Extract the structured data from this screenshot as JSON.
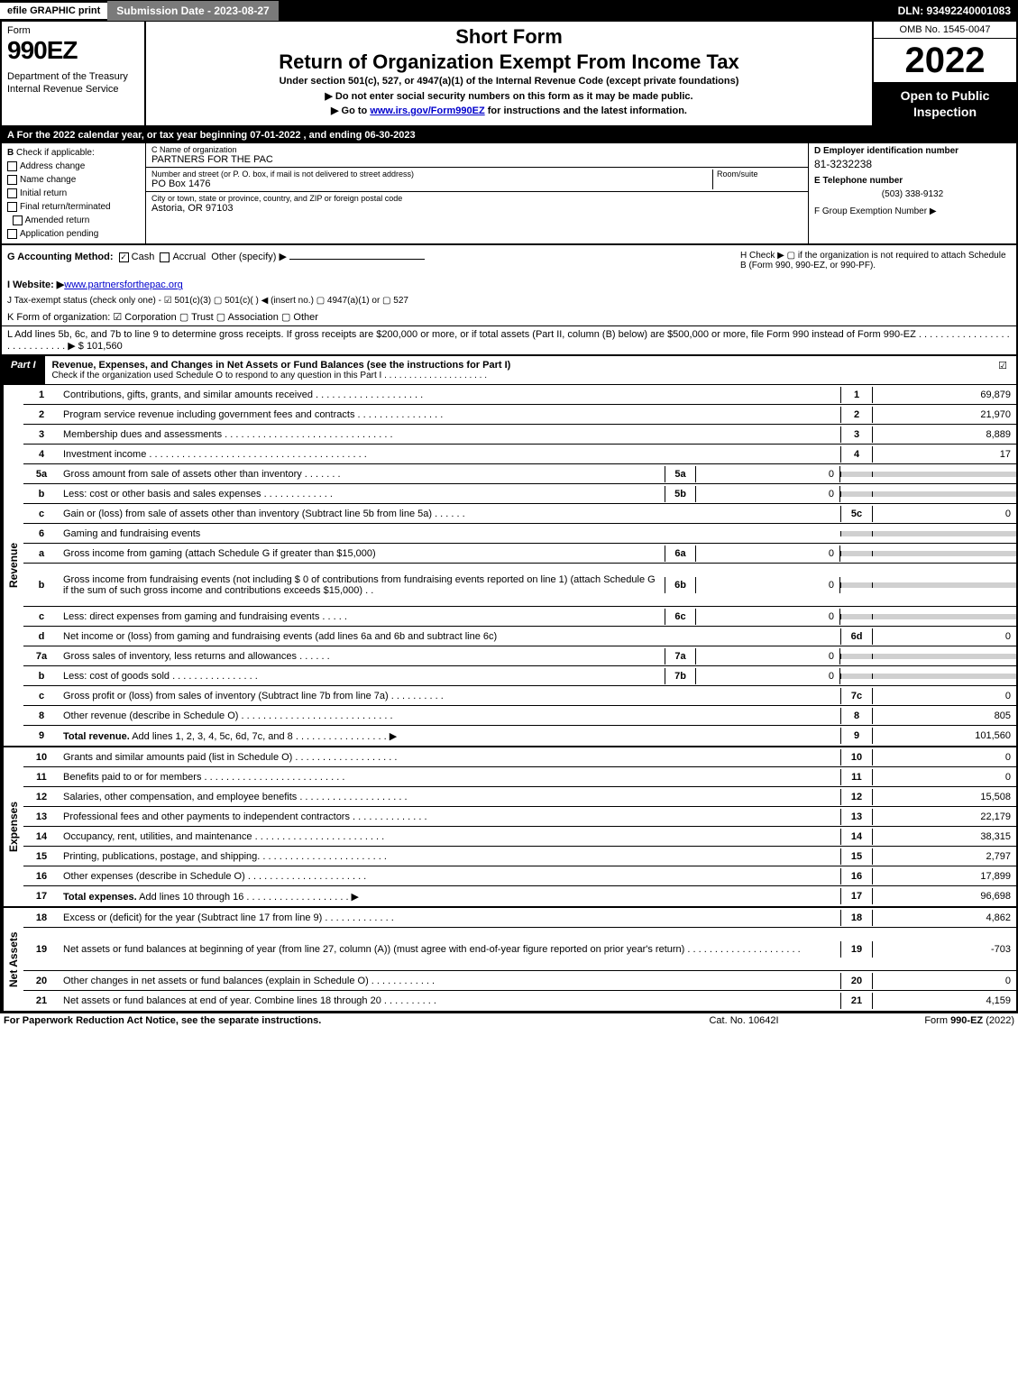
{
  "topbar": {
    "efile": "efile GRAPHIC print",
    "subdate": "Submission Date - 2023-08-27",
    "dln": "DLN: 93492240001083"
  },
  "header": {
    "form_word": "Form",
    "form_num": "990EZ",
    "dept": "Department of the Treasury\nInternal Revenue Service",
    "short_form": "Short Form",
    "title": "Return of Organization Exempt From Income Tax",
    "under": "Under section 501(c), 527, or 4947(a)(1) of the Internal Revenue Code (except private foundations)",
    "arrow1": "▶ Do not enter social security numbers on this form as it may be made public.",
    "arrow2_pre": "▶ Go to ",
    "arrow2_link": "www.irs.gov/Form990EZ",
    "arrow2_post": " for instructions and the latest information.",
    "omb": "OMB No. 1545-0047",
    "year": "2022",
    "open": "Open to Public Inspection"
  },
  "lineA": "A  For the 2022 calendar year, or tax year beginning 07-01-2022 , and ending 06-30-2023",
  "sectionB": {
    "label": "B",
    "check_if": "Check if applicable:",
    "items": [
      "Address change",
      "Name change",
      "Initial return",
      "Final return/terminated",
      "Amended return",
      "Application pending"
    ]
  },
  "sectionC": {
    "name_lbl": "C Name of organization",
    "name": "PARTNERS FOR THE PAC",
    "street_lbl": "Number and street (or P. O. box, if mail is not delivered to street address)",
    "room_lbl": "Room/suite",
    "street": "PO Box 1476",
    "city_lbl": "City or town, state or province, country, and ZIP or foreign postal code",
    "city": "Astoria, OR  97103"
  },
  "sectionD": {
    "ein_lbl": "D Employer identification number",
    "ein": "81-3232238",
    "tel_lbl": "E Telephone number",
    "tel": "(503) 338-9132",
    "grp_lbl": "F Group Exemption Number   ▶"
  },
  "lineG": {
    "label": "G Accounting Method:",
    "cash": "Cash",
    "accrual": "Accrual",
    "other": "Other (specify) ▶"
  },
  "lineH": "H  Check ▶   ▢  if the organization is not required to attach Schedule B (Form 990, 990-EZ, or 990-PF).",
  "lineI": {
    "label": "I Website: ▶",
    "val": "www.partnersforthepac.org"
  },
  "lineJ": "J Tax-exempt status (check only one) - ☑ 501(c)(3)  ▢ 501(c)(  ) ◀ (insert no.)  ▢ 4947(a)(1) or  ▢ 527",
  "lineK": "K Form of organization:   ☑ Corporation   ▢ Trust   ▢ Association   ▢ Other",
  "lineL": {
    "text": "L Add lines 5b, 6c, and 7b to line 9 to determine gross receipts. If gross receipts are $200,000 or more, or if total assets (Part II, column (B) below) are $500,000 or more, file Form 990 instead of Form 990-EZ  .  .  .  .  .  .  .  .  .  .  .  .  .  .  .  .  .  .  .  .  .  .  .  .  .  .  .  .  ▶ $",
    "val": "101,560"
  },
  "part1": {
    "label": "Part I",
    "title": "Revenue, Expenses, and Changes in Net Assets or Fund Balances (see the instructions for Part I)",
    "sub": "Check if the organization used Schedule O to respond to any question in this Part I  .  .  .  .  .  .  .  .  .  .  .  .  .  .  .  .  .  .  .  .  .",
    "check": "☑"
  },
  "sections": {
    "revenue": "Revenue",
    "expenses": "Expenses",
    "netassets": "Net Assets"
  },
  "rows": [
    {
      "ln": "1",
      "desc": "Contributions, gifts, grants, and similar amounts received  .  .  .  .  .  .  .  .  .  .  .  .  .  .  .  .  .  .  .  .",
      "n": "1",
      "v": "69,879"
    },
    {
      "ln": "2",
      "desc": "Program service revenue including government fees and contracts  .  .  .  .  .  .  .  .  .  .  .  .  .  .  .  .",
      "n": "2",
      "v": "21,970"
    },
    {
      "ln": "3",
      "desc": "Membership dues and assessments  .  .  .  .  .  .  .  .  .  .  .  .  .  .  .  .  .  .  .  .  .  .  .  .  .  .  .  .  .  .  .",
      "n": "3",
      "v": "8,889"
    },
    {
      "ln": "4",
      "desc": "Investment income  .  .  .  .  .  .  .  .  .  .  .  .  .  .  .  .  .  .  .  .  .  .  .  .  .  .  .  .  .  .  .  .  .  .  .  .  .  .  .  .",
      "n": "4",
      "v": "17"
    },
    {
      "ln": "5a",
      "desc": "Gross amount from sale of assets other than inventory  .  .  .  .  .  .  .",
      "sub": "5a",
      "sv": "0",
      "shade": true
    },
    {
      "ln": "b",
      "desc": "Less: cost or other basis and sales expenses  .  .  .  .  .  .  .  .  .  .  .  .  .",
      "sub": "5b",
      "sv": "0",
      "shade": true
    },
    {
      "ln": "c",
      "desc": "Gain or (loss) from sale of assets other than inventory (Subtract line 5b from line 5a)  .  .  .  .  .  .",
      "n": "5c",
      "v": "0"
    },
    {
      "ln": "6",
      "desc": "Gaming and fundraising events",
      "shade": true,
      "nosub": true
    },
    {
      "ln": "a",
      "desc": "Gross income from gaming (attach Schedule G if greater than $15,000)",
      "sub": "6a",
      "sv": "0",
      "shade": true
    },
    {
      "ln": "b",
      "desc": "Gross income from fundraising events (not including $  0                    of contributions from fundraising events reported on line 1) (attach Schedule G if the sum of such gross income and contributions exceeds $15,000)    .  .",
      "sub": "6b",
      "sv": "0",
      "shade": true,
      "tall": true
    },
    {
      "ln": "c",
      "desc": "Less: direct expenses from gaming and fundraising events  .  .  .  .  .",
      "sub": "6c",
      "sv": "0",
      "shade": true
    },
    {
      "ln": "d",
      "desc": "Net income or (loss) from gaming and fundraising events (add lines 6a and 6b and subtract line 6c)",
      "n": "6d",
      "v": "0"
    },
    {
      "ln": "7a",
      "desc": "Gross sales of inventory, less returns and allowances  .  .  .  .  .  .",
      "sub": "7a",
      "sv": "0",
      "shade": true
    },
    {
      "ln": "b",
      "desc": "Less: cost of goods sold         .  .  .  .  .  .  .  .  .  .  .  .  .  .  .  .",
      "sub": "7b",
      "sv": "0",
      "shade": true
    },
    {
      "ln": "c",
      "desc": "Gross profit or (loss) from sales of inventory (Subtract line 7b from line 7a)  .  .  .  .  .  .  .  .  .  .",
      "n": "7c",
      "v": "0"
    },
    {
      "ln": "8",
      "desc": "Other revenue (describe in Schedule O)  .  .  .  .  .  .  .  .  .  .  .  .  .  .  .  .  .  .  .  .  .  .  .  .  .  .  .  .",
      "n": "8",
      "v": "805"
    },
    {
      "ln": "9",
      "desc": "Total revenue. Add lines 1, 2, 3, 4, 5c, 6d, 7c, and 8  .  .  .  .  .  .  .  .  .  .  .  .  .  .  .  .  .     ▶",
      "n": "9",
      "v": "101,560",
      "bold": true
    }
  ],
  "exp_rows": [
    {
      "ln": "10",
      "desc": "Grants and similar amounts paid (list in Schedule O)  .  .  .  .  .  .  .  .  .  .  .  .  .  .  .  .  .  .  .",
      "n": "10",
      "v": "0"
    },
    {
      "ln": "11",
      "desc": "Benefits paid to or for members         .  .  .  .  .  .  .  .  .  .  .  .  .  .  .  .  .  .  .  .  .  .  .  .  .  .",
      "n": "11",
      "v": "0"
    },
    {
      "ln": "12",
      "desc": "Salaries, other compensation, and employee benefits  .  .  .  .  .  .  .  .  .  .  .  .  .  .  .  .  .  .  .  .",
      "n": "12",
      "v": "15,508"
    },
    {
      "ln": "13",
      "desc": "Professional fees and other payments to independent contractors  .  .  .  .  .  .  .  .  .  .  .  .  .  .",
      "n": "13",
      "v": "22,179"
    },
    {
      "ln": "14",
      "desc": "Occupancy, rent, utilities, and maintenance  .  .  .  .  .  .  .  .  .  .  .  .  .  .  .  .  .  .  .  .  .  .  .  .",
      "n": "14",
      "v": "38,315"
    },
    {
      "ln": "15",
      "desc": "Printing, publications, postage, and shipping.  .  .  .  .  .  .  .  .  .  .  .  .  .  .  .  .  .  .  .  .  .  .  .",
      "n": "15",
      "v": "2,797"
    },
    {
      "ln": "16",
      "desc": "Other expenses (describe in Schedule O)       .  .  .  .  .  .  .  .  .  .  .  .  .  .  .  .  .  .  .  .  .  .",
      "n": "16",
      "v": "17,899"
    },
    {
      "ln": "17",
      "desc": "Total expenses. Add lines 10 through 16      .  .  .  .  .  .  .  .  .  .  .  .  .  .  .  .  .  .  .     ▶",
      "n": "17",
      "v": "96,698",
      "bold": true
    }
  ],
  "net_rows": [
    {
      "ln": "18",
      "desc": "Excess or (deficit) for the year (Subtract line 17 from line 9)       .  .  .  .  .  .  .  .  .  .  .  .  .",
      "n": "18",
      "v": "4,862"
    },
    {
      "ln": "19",
      "desc": "Net assets or fund balances at beginning of year (from line 27, column (A)) (must agree with end-of-year figure reported on prior year's return)  .  .  .  .  .  .  .  .  .  .  .  .  .  .  .  .  .  .  .  .  .",
      "n": "19",
      "v": "-703",
      "tall": true
    },
    {
      "ln": "20",
      "desc": "Other changes in net assets or fund balances (explain in Schedule O)  .  .  .  .  .  .  .  .  .  .  .  .",
      "n": "20",
      "v": "0"
    },
    {
      "ln": "21",
      "desc": "Net assets or fund balances at end of year. Combine lines 18 through 20  .  .  .  .  .  .  .  .  .  .",
      "n": "21",
      "v": "4,159"
    }
  ],
  "footer": {
    "f1": "For Paperwork Reduction Act Notice, see the separate instructions.",
    "f2": "Cat. No. 10642I",
    "f3": "Form 990-EZ (2022)"
  }
}
